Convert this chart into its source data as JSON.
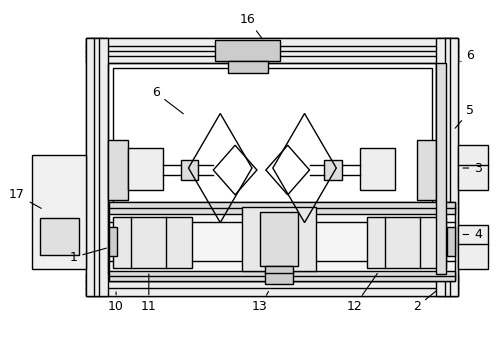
{
  "bg_color": "#ffffff",
  "line_color": "#000000",
  "line_width": 1.0,
  "font_size": 9,
  "fig_width": 4.99,
  "fig_height": 3.44
}
